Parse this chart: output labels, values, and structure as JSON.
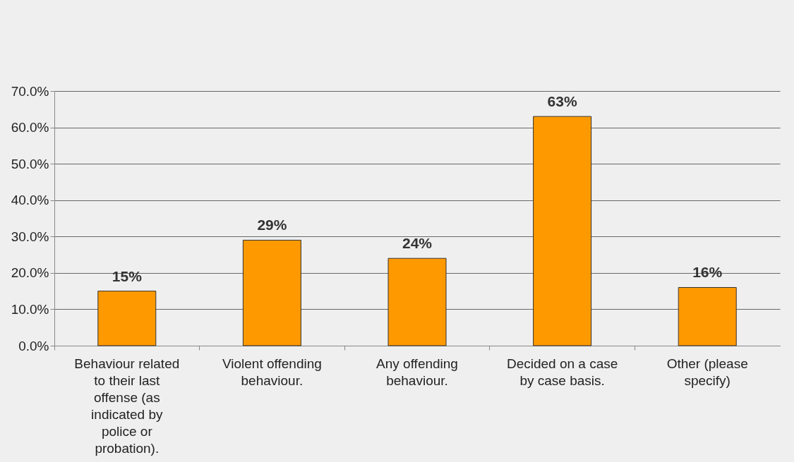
{
  "chart_data": {
    "type": "bar",
    "categories": [
      "Behaviour related to their last offense (as indicated by police or probation).",
      "Violent offending behaviour.",
      "Any offending behaviour.",
      "Decided on a case by case basis.",
      "Other (please specify)"
    ],
    "values": [
      15,
      29,
      24,
      63,
      16
    ],
    "value_labels": [
      "15%",
      "29%",
      "24%",
      "63%",
      "16%"
    ],
    "color": "#ff9900",
    "ylim": [
      0,
      70
    ],
    "yticks": [
      {
        "value": 0,
        "label": "0.0%"
      },
      {
        "value": 10,
        "label": "10.0%"
      },
      {
        "value": 20,
        "label": "20.0%"
      },
      {
        "value": 30,
        "label": "30.0%"
      },
      {
        "value": 40,
        "label": "40.0%"
      },
      {
        "value": 50,
        "label": "50.0%"
      },
      {
        "value": 60,
        "label": "60.0%"
      },
      {
        "value": 70,
        "label": "70.0%"
      }
    ],
    "grid": "y"
  }
}
